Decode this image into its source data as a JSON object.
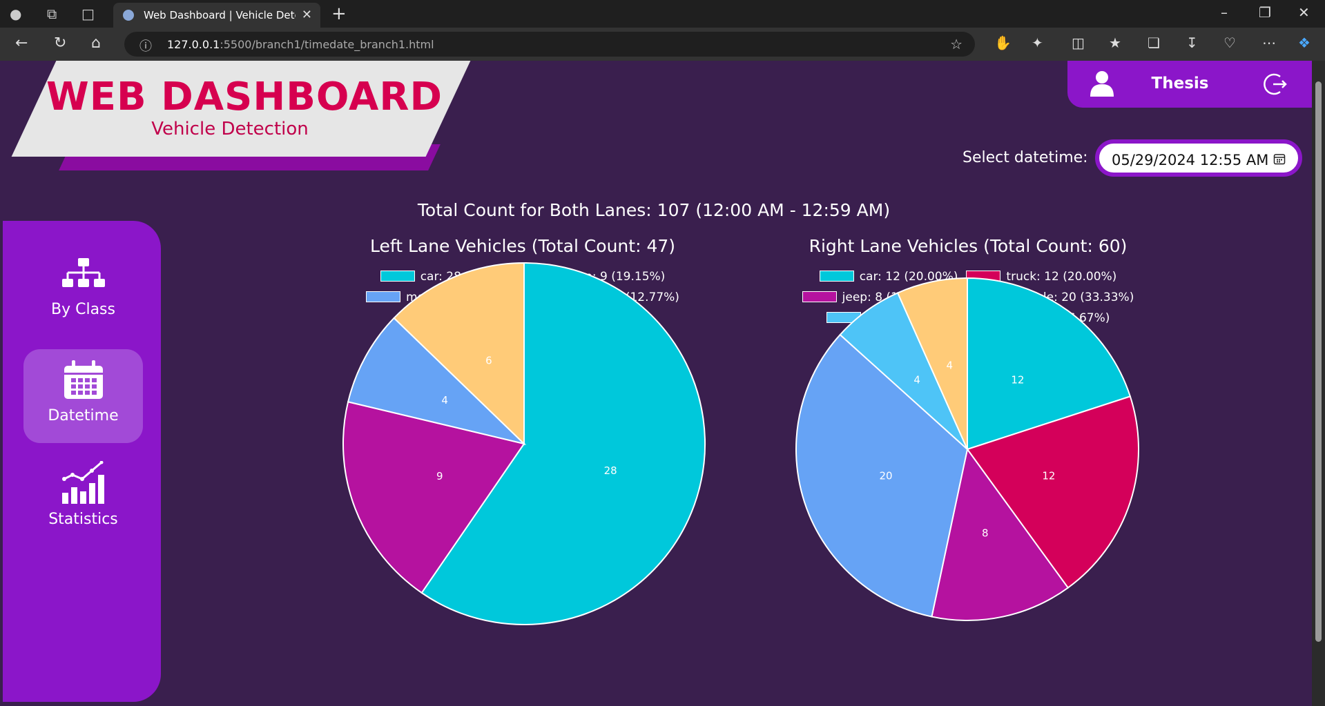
{
  "browser": {
    "tab_title": "Web Dashboard | Vehicle Detecti",
    "url_host": "127.0.0.1",
    "url_rest": ":5500/branch1/timedate_branch1.html"
  },
  "header": {
    "title": "WEB DASHBOARD",
    "subtitle": "Vehicle Detection",
    "user_name": "Thesis"
  },
  "datetime": {
    "label": "Select datetime:",
    "value": "05/29/2024 12:55 AM"
  },
  "sidebar": {
    "items": [
      {
        "label": "By Class",
        "icon": "sitemap-icon"
      },
      {
        "label": "Datetime",
        "icon": "calendar-icon"
      },
      {
        "label": "Statistics",
        "icon": "chart-growth-icon"
      }
    ]
  },
  "main": {
    "total_label": "Total Count for Both Lanes: 107 (12:00 AM - 12:59 AM)"
  },
  "colors": {
    "car": "#00c8db",
    "truck": "#d4005a",
    "jeep": "#b5129f",
    "motorcycle": "#66a3f5",
    "tricycle": "#4ec4f7",
    "van": "#ffcb78"
  },
  "chart_data": [
    {
      "type": "pie",
      "title": "Left Lane Vehicles (Total Count: 47)",
      "categories": [
        "car",
        "jeep",
        "motorcycle",
        "van"
      ],
      "values": [
        28,
        9,
        4,
        6
      ],
      "legend": [
        "car: 28 (59.57%)",
        "jeep: 9 (19.15%)",
        "motorcycle: 4 (8.51%)",
        "van: 6 (12.77%)"
      ]
    },
    {
      "type": "pie",
      "title": "Right Lane Vehicles (Total Count: 60)",
      "categories": [
        "car",
        "truck",
        "jeep",
        "motorcycle",
        "tricycle",
        "van"
      ],
      "values": [
        12,
        12,
        8,
        20,
        4,
        4
      ],
      "legend": [
        "car: 12 (20.00%)",
        "truck: 12 (20.00%)",
        "jeep: 8 (13.33%)",
        "motorcycle: 20 (33.33%)",
        "tricycle: 4 (6.67%)",
        "van: 4 (6.67%)"
      ]
    }
  ]
}
